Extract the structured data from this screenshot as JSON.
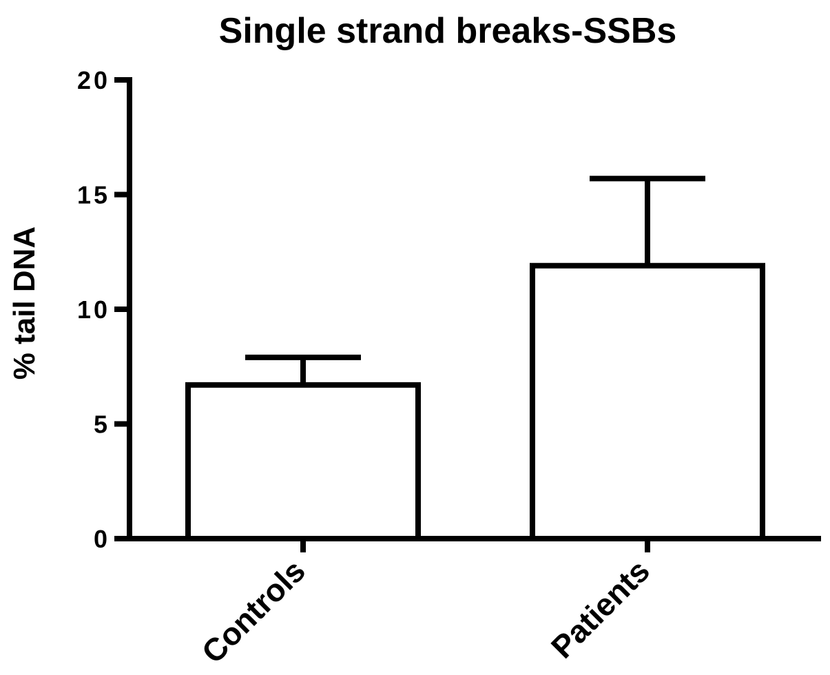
{
  "chart_data": {
    "type": "bar",
    "title": "Single strand breaks-SSBs",
    "xlabel": "",
    "ylabel": "% tail DNA",
    "categories": [
      "Controls",
      "Patients"
    ],
    "values": [
      6.7,
      11.9
    ],
    "error_upper": [
      7.9,
      15.7
    ],
    "ylim": [
      0,
      20
    ],
    "yticks": [
      0,
      5,
      10,
      15,
      20
    ],
    "ytick_labels": [
      "0",
      "5",
      "10",
      "15",
      "20"
    ],
    "grid": false,
    "legend": "none",
    "bar_fill": "#ffffff",
    "bar_stroke": "#000000"
  }
}
